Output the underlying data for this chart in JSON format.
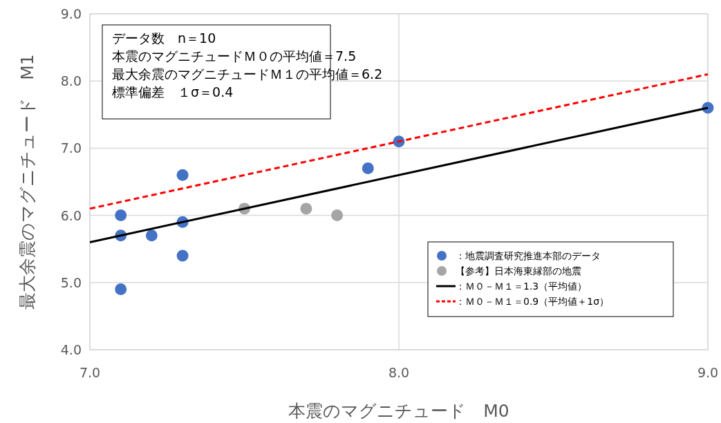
{
  "chart_data": {
    "type": "scatter",
    "xlabel": "本震のマグニチュード　M0",
    "ylabel": "最大余震のマグニチュード　M1",
    "xlim": [
      7.0,
      9.0
    ],
    "xticks": [
      {
        "value": 7,
        "label": "7.0"
      },
      {
        "value": 8,
        "label": "8.0"
      },
      {
        "value": 9,
        "label": "9.0"
      }
    ],
    "ylim": [
      4.0,
      9.0
    ],
    "yticks": [
      {
        "value": 4,
        "label": "4.0"
      },
      {
        "value": 5,
        "label": "5.0"
      },
      {
        "value": 6,
        "label": "6.0"
      },
      {
        "value": 7,
        "label": "7.0"
      },
      {
        "value": 8,
        "label": "8.0"
      },
      {
        "value": 9,
        "label": "9.0"
      }
    ],
    "grid": true,
    "legend": "bottom right",
    "annotations": [
      "データ数　n＝10",
      "本震のマグニチュードＭ０の平均値＝7.5",
      "最大余震のマグニチュードＭ１の平均値＝6.2",
      "標準偏差　１σ＝0.4"
    ],
    "series": [
      {
        "name": "：地震調査研究推進本部のデータ",
        "type": "scatter",
        "marker": "circle",
        "color": "#4472c4",
        "x": [
          7.1,
          7.1,
          7.1,
          7.2,
          7.3,
          7.3,
          7.3,
          7.9,
          8.0,
          9.0
        ],
        "values": [
          6.0,
          5.7,
          4.9,
          5.7,
          6.6,
          5.9,
          5.4,
          6.7,
          7.1,
          7.6
        ]
      },
      {
        "name": "【参考】日本海東縁部の地震",
        "type": "scatter",
        "marker": "circle",
        "color": "#a5a5a5",
        "x": [
          7.5,
          7.7,
          7.8
        ],
        "values": [
          6.1,
          6.1,
          6.0
        ]
      },
      {
        "name": "：Ｍ０－Ｍ１＝1.3（平均値）",
        "type": "line",
        "line_style": "solid",
        "color": "#000000",
        "x": [
          7.0,
          9.0
        ],
        "values": [
          5.6,
          7.6
        ]
      },
      {
        "name": "：Ｍ０－Ｍ１＝0.9（平均値＋1σ）",
        "type": "line",
        "line_style": "dashed",
        "color": "#ff0000",
        "x": [
          7.0,
          9.0
        ],
        "values": [
          6.1,
          8.1
        ]
      }
    ]
  }
}
